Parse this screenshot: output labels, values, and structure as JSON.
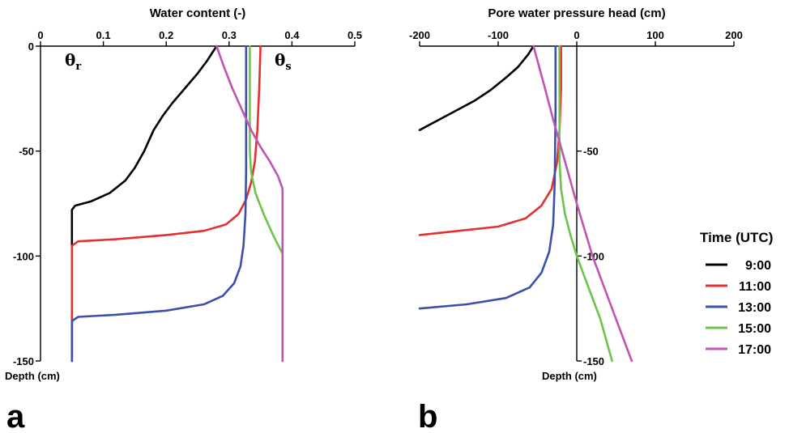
{
  "chart_data": [
    {
      "panel": "a",
      "type": "line",
      "title": "",
      "xlabel": "Water content (-)",
      "ylabel": "Depth (cm)",
      "xlim": [
        0,
        0.5
      ],
      "ylim": [
        -150,
        0
      ],
      "x_ticks": [
        0,
        0.1,
        0.2,
        0.3,
        0.4,
        0.5
      ],
      "x_tick_labels": [
        "0",
        "0.1",
        "0.2",
        "0.3",
        "0.4",
        "0.5"
      ],
      "y_ticks": [
        0,
        -50,
        -100,
        -150
      ],
      "y_tick_labels": [
        "0",
        "-50",
        "-100",
        "-150"
      ],
      "x_axis_position": "top",
      "annotations": [
        {
          "text": "θ",
          "sub": "r",
          "x": 0.05,
          "y": -8
        },
        {
          "text": "θ",
          "sub": "s",
          "x": 0.385,
          "y": -8
        }
      ],
      "series": [
        {
          "name": "9:00",
          "color": "#000000",
          "x": [
            0.05,
            0.05,
            0.055,
            0.08,
            0.11,
            0.135,
            0.15,
            0.165,
            0.18,
            0.195,
            0.21,
            0.23,
            0.25,
            0.265,
            0.28
          ],
          "y": [
            -150,
            -78,
            -76,
            -74,
            -70,
            -64,
            -58,
            -50,
            -40,
            -33,
            -27,
            -20,
            -13,
            -7,
            0
          ]
        },
        {
          "name": "11:00",
          "color": "#e53030",
          "x": [
            0.05,
            0.05,
            0.06,
            0.12,
            0.2,
            0.26,
            0.295,
            0.315,
            0.327,
            0.335,
            0.341,
            0.345,
            0.348,
            0.35
          ],
          "y": [
            -150,
            -95,
            -93,
            -92,
            -90,
            -88,
            -85,
            -80,
            -73,
            -65,
            -55,
            -40,
            -20,
            0
          ]
        },
        {
          "name": "13:00",
          "color": "#3b50a8",
          "x": [
            0.05,
            0.05,
            0.06,
            0.12,
            0.2,
            0.26,
            0.29,
            0.308,
            0.318,
            0.323,
            0.326,
            0.327,
            0.327,
            0.327
          ],
          "y": [
            -150,
            -131,
            -129,
            -128,
            -126,
            -123,
            -119,
            -113,
            -105,
            -95,
            -80,
            -60,
            -30,
            0
          ]
        },
        {
          "name": "15:00",
          "color": "#6cc44a",
          "x": [
            0.385,
            0.385,
            0.37,
            0.355,
            0.342,
            0.335,
            0.333,
            0.333,
            0.333,
            0.333
          ],
          "y": [
            -150,
            -99,
            -90,
            -80,
            -70,
            -60,
            -50,
            -40,
            -20,
            0
          ]
        },
        {
          "name": "17:00",
          "color": "#c054b4",
          "x": [
            0.385,
            0.385,
            0.378,
            0.365,
            0.35,
            0.335,
            0.32,
            0.305,
            0.292,
            0.28
          ],
          "y": [
            -150,
            -68,
            -62,
            -55,
            -48,
            -40,
            -30,
            -20,
            -10,
            0
          ]
        }
      ]
    },
    {
      "panel": "b",
      "type": "line",
      "title": "",
      "xlabel": "Pore water pressure head (cm)",
      "ylabel": "Depth (cm)",
      "xlim": [
        -200,
        200
      ],
      "ylim": [
        -150,
        0
      ],
      "x_ticks": [
        -200,
        -100,
        0,
        100,
        200
      ],
      "x_tick_labels": [
        "-200",
        "-100",
        "0",
        "100",
        "200"
      ],
      "y_ticks": [
        -50,
        -100,
        -150
      ],
      "y_tick_labels": [
        "-50",
        "-100",
        "-150"
      ],
      "x_axis_position": "top",
      "y_axis_position": "x=0",
      "series": [
        {
          "name": "9:00",
          "color": "#000000",
          "x": [
            -200,
            -160,
            -130,
            -110,
            -90,
            -75,
            -62,
            -55
          ],
          "y": [
            -40,
            -32,
            -26,
            -21,
            -15,
            -10,
            -4,
            0
          ]
        },
        {
          "name": "11:00",
          "color": "#e53030",
          "x": [
            -200,
            -150,
            -100,
            -65,
            -45,
            -32,
            -25,
            -22,
            -20,
            -20
          ],
          "y": [
            -90,
            -88,
            -86,
            -82,
            -76,
            -68,
            -55,
            -40,
            -20,
            0
          ]
        },
        {
          "name": "13:00",
          "color": "#3b50a8",
          "x": [
            -200,
            -140,
            -90,
            -60,
            -45,
            -35,
            -30,
            -28,
            -27,
            -27
          ],
          "y": [
            -125,
            -123,
            -120,
            -115,
            -108,
            -98,
            -85,
            -65,
            -30,
            0
          ]
        },
        {
          "name": "15:00",
          "color": "#6cc44a",
          "x": [
            45,
            30,
            12,
            0,
            -8,
            -15,
            -20,
            -22,
            -22,
            -22
          ],
          "y": [
            -150,
            -130,
            -112,
            -100,
            -90,
            -80,
            -68,
            -55,
            -30,
            0
          ]
        },
        {
          "name": "17:00",
          "color": "#c054b4",
          "x": [
            70,
            45,
            20,
            0,
            -15,
            -30,
            -42,
            -55
          ],
          "y": [
            -150,
            -125,
            -100,
            -75,
            -55,
            -35,
            -18,
            0
          ]
        }
      ]
    }
  ],
  "legend": {
    "title": "Time (UTC)",
    "placement": "right",
    "items": [
      {
        "label": "9:00",
        "color": "#000000"
      },
      {
        "label": "11:00",
        "color": "#e53030"
      },
      {
        "label": "13:00",
        "color": "#3b50a8"
      },
      {
        "label": "15:00",
        "color": "#6cc44a"
      },
      {
        "label": "17:00",
        "color": "#c054b4"
      }
    ]
  },
  "panel_labels": [
    "a",
    "b"
  ],
  "theta_labels": {
    "base": "θ",
    "residual_sub": "r",
    "saturated_sub": "s"
  }
}
